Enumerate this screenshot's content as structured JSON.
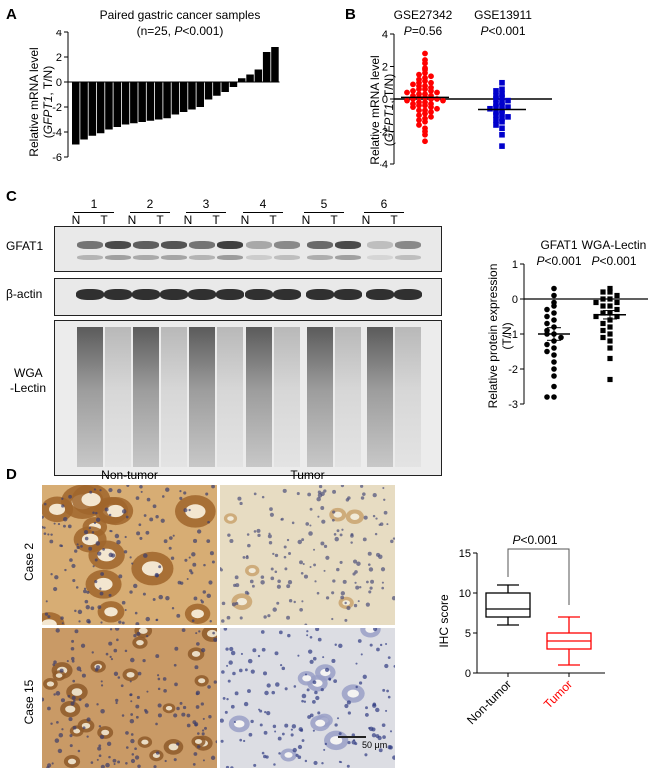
{
  "panelA": {
    "letter": "A",
    "title": "Paired gastric cancer samples",
    "subtitle_prefix": "(n=25, ",
    "subtitle_p": "P",
    "subtitle_suffix": "<0.001)",
    "ylabel_line1": "Relative mRNA level",
    "ylabel_gene": "GFPT1",
    "ylabel_suffix": ", T/N)",
    "ylabel_open": "("
  },
  "panelB": {
    "letter": "B",
    "datasets": [
      {
        "name": "GSE27342",
        "p_prefix": "P",
        "p_value": "=0.56"
      },
      {
        "name": "GSE13911",
        "p_prefix": "P",
        "p_value": "<0.001"
      }
    ]
  },
  "panelC": {
    "letter": "C",
    "lanes": [
      "1",
      "2",
      "3",
      "4",
      "5",
      "6"
    ],
    "lane_N": "N",
    "lane_T": "T",
    "blot_labels": [
      "GFAT1",
      "β-actin",
      "WGA",
      "-Lectin"
    ],
    "groups": [
      {
        "name": "GFAT1",
        "p_prefix": "P",
        "p_value": "<0.001"
      },
      {
        "name": "WGA-Lectin",
        "p_prefix": "P",
        "p_value": "<0.001"
      }
    ],
    "ylabel_line1": "Relative protein expression",
    "ylabel_line2": "(T/N)"
  },
  "panelD": {
    "letter": "D",
    "col_labels": [
      "Non-tumor",
      "Tumor"
    ],
    "row_labels": [
      "Case 2",
      "Case 15"
    ],
    "scalebar": "50 μm",
    "p_text_prefix": "P",
    "p_text_value": "<0.001",
    "ylabel": "IHC score"
  },
  "chart_data": [
    {
      "id": "A",
      "type": "bar",
      "xlabel": "",
      "ylabel": "Relative mRNA level (GFPT1, T/N)",
      "ylim": [
        -6,
        4
      ],
      "yticks": [
        -6,
        -4,
        -2,
        0,
        2,
        4
      ],
      "values": [
        -5.0,
        -4.6,
        -4.3,
        -4.1,
        -3.8,
        -3.6,
        -3.4,
        -3.3,
        -3.2,
        -3.1,
        -3.0,
        -2.9,
        -2.6,
        -2.4,
        -2.2,
        -2.0,
        -1.4,
        -1.1,
        -0.8,
        -0.4,
        0.3,
        0.6,
        1.0,
        2.4,
        2.8
      ],
      "color": "#000000"
    },
    {
      "id": "B",
      "type": "scatter",
      "ylabel": "Relative mRNA level (GFPT1, T/N)",
      "ylim": [
        -4,
        4
      ],
      "yticks": [
        -4,
        -2,
        0,
        2,
        4
      ],
      "series": [
        {
          "name": "GSE27342",
          "color": "#ff0000",
          "marker": "circle",
          "values": [
            2.8,
            2.4,
            2.2,
            1.9,
            1.8,
            1.6,
            1.5,
            1.4,
            1.3,
            1.2,
            1.1,
            1.0,
            1.0,
            0.9,
            0.8,
            0.8,
            0.7,
            0.6,
            0.6,
            0.5,
            0.5,
            0.4,
            0.4,
            0.3,
            0.3,
            0.2,
            0.2,
            0.1,
            0.1,
            0.0,
            0.0,
            0.0,
            -0.1,
            -0.1,
            -0.2,
            -0.2,
            -0.3,
            -0.3,
            -0.4,
            -0.4,
            -0.5,
            -0.5,
            -0.6,
            -0.7,
            -0.7,
            -0.8,
            -0.9,
            -1.0,
            -1.1,
            -1.2,
            -1.3,
            -1.4,
            -1.6,
            -1.8,
            -2.0,
            -2.2,
            -2.6
          ]
        },
        {
          "name": "GSE13911",
          "color": "#0000cc",
          "marker": "square",
          "values": [
            1.0,
            0.6,
            0.5,
            0.3,
            0.2,
            0.1,
            0.0,
            -0.1,
            -0.2,
            -0.3,
            -0.4,
            -0.5,
            -0.5,
            -0.6,
            -0.7,
            -0.8,
            -0.9,
            -1.0,
            -1.1,
            -1.2,
            -1.3,
            -1.4,
            -1.6,
            -1.8,
            -2.2,
            -2.9
          ]
        }
      ]
    },
    {
      "id": "C",
      "type": "scatter",
      "ylabel": "Relative protein expression (T/N)",
      "ylim": [
        -3,
        1
      ],
      "yticks": [
        -3,
        -2,
        -1,
        0,
        1
      ],
      "series": [
        {
          "name": "GFAT1",
          "color": "#000000",
          "marker": "circle",
          "mean": -1.0,
          "sem": 0.18,
          "values": [
            0.3,
            0.1,
            -0.1,
            -0.2,
            -0.3,
            -0.4,
            -0.5,
            -0.6,
            -0.7,
            -0.8,
            -0.9,
            -1.0,
            -1.0,
            -1.1,
            -1.2,
            -1.3,
            -1.4,
            -1.5,
            -1.6,
            -1.8,
            -2.0,
            -2.2,
            -2.5,
            -2.8,
            -2.8
          ]
        },
        {
          "name": "WGA-Lectin",
          "color": "#000000",
          "marker": "square",
          "mean": -0.45,
          "sem": 0.12,
          "values": [
            0.3,
            0.2,
            0.2,
            0.1,
            0.0,
            0.0,
            -0.1,
            -0.1,
            -0.2,
            -0.2,
            -0.3,
            -0.4,
            -0.4,
            -0.5,
            -0.5,
            -0.6,
            -0.7,
            -0.8,
            -0.9,
            -1.0,
            -1.1,
            -1.2,
            -1.4,
            -1.7,
            -2.3
          ]
        }
      ]
    },
    {
      "id": "D",
      "type": "box",
      "ylabel": "IHC score",
      "ylim": [
        0,
        15
      ],
      "yticks": [
        0,
        5,
        10,
        15
      ],
      "categories": [
        "Non-tumor",
        "Tumor"
      ],
      "boxes": [
        {
          "name": "Non-tumor",
          "color": "#000000",
          "min": 6,
          "q1": 7,
          "median": 8,
          "q3": 10,
          "max": 11
        },
        {
          "name": "Tumor",
          "color": "#ff0000",
          "min": 1,
          "q1": 3,
          "median": 4,
          "q3": 5,
          "max": 7
        }
      ]
    }
  ]
}
